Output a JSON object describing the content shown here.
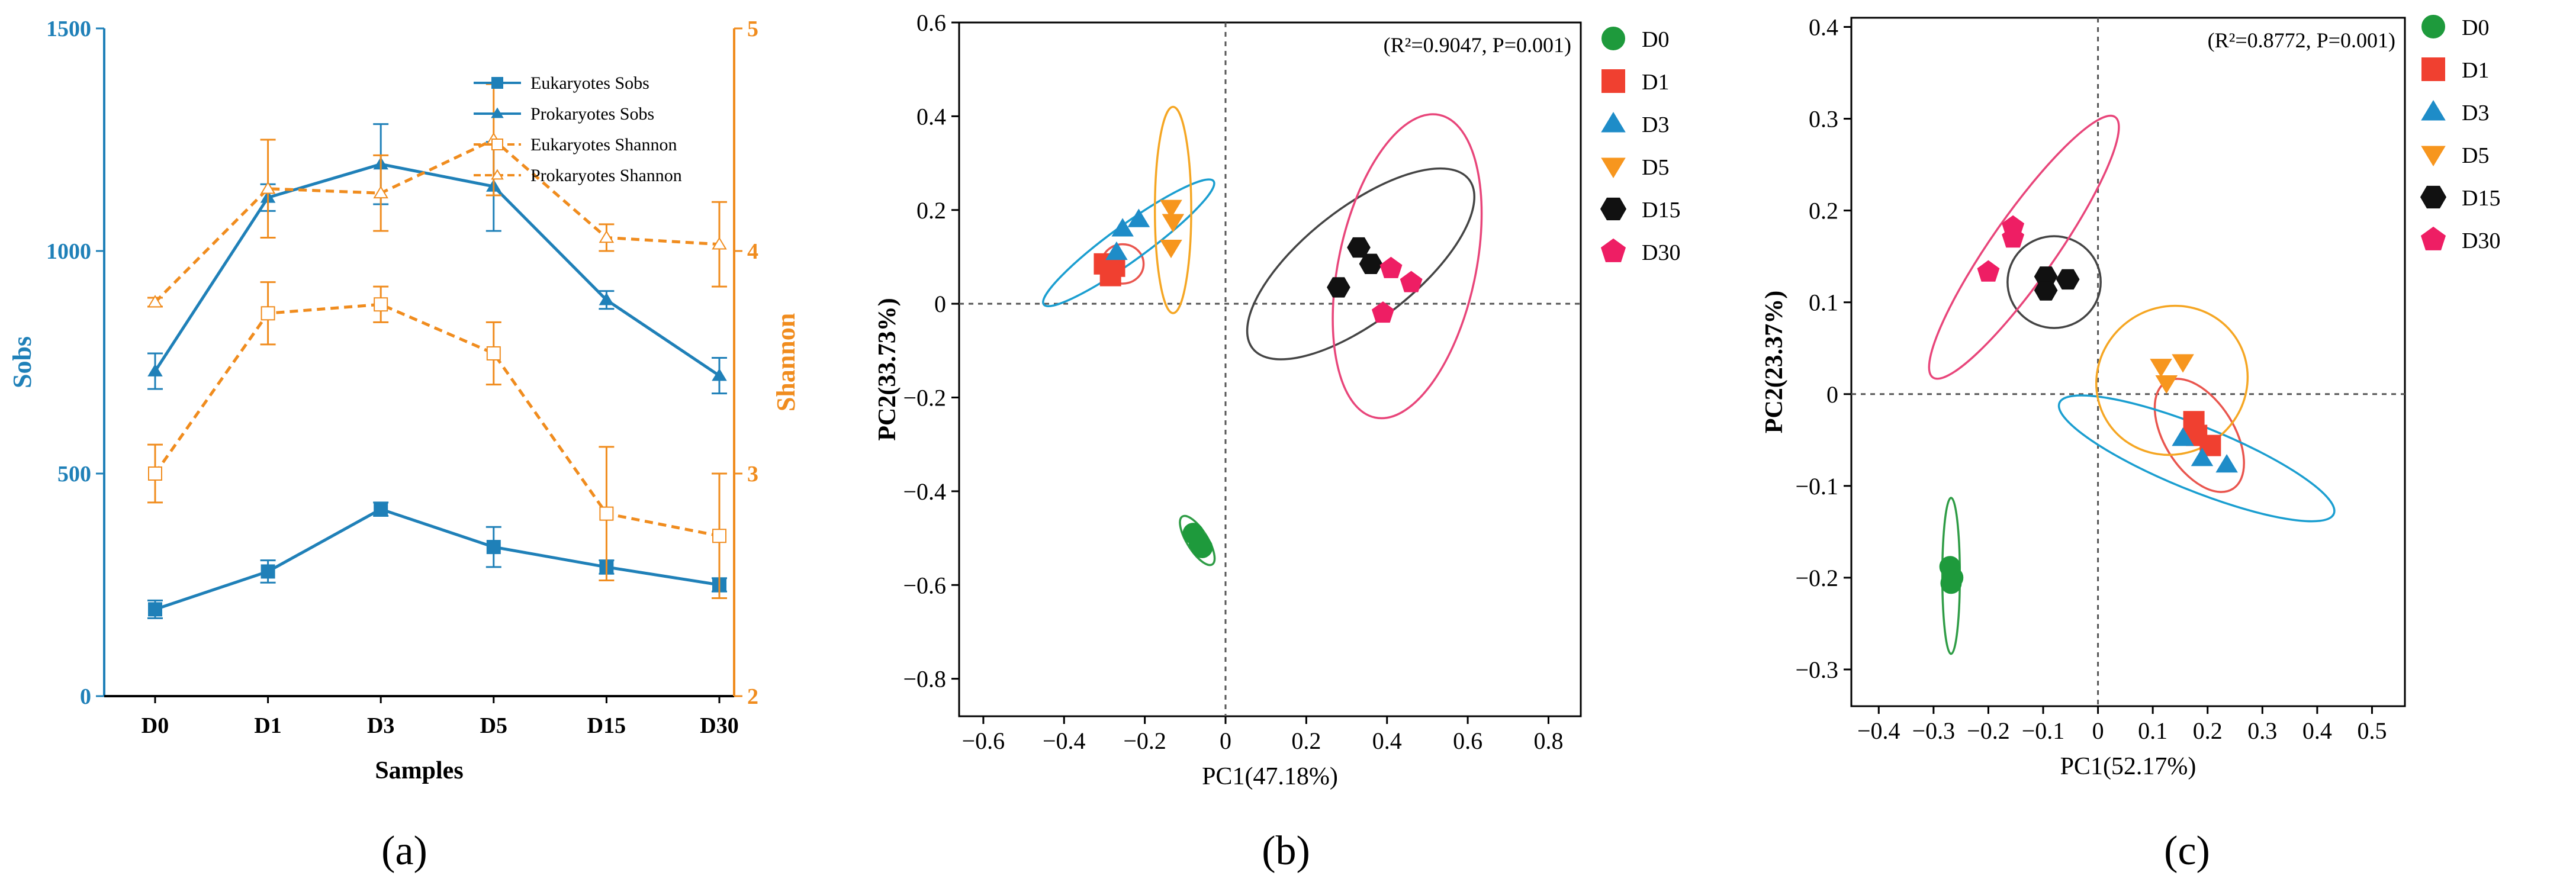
{
  "colors": {
    "blue": "#1f80b8",
    "orange": "#f08c1e",
    "green": "#1e9a3c",
    "red": "#f04030",
    "teal": "#1e8cc8",
    "amber": "#f7961e",
    "black": "#111111",
    "pink": "#ee1e64",
    "ellipse_cyan": "#1a9ed0",
    "ellipse_orange": "#f5a623",
    "ellipse_pink": "#e8457a",
    "ellipse_gray": "#444444",
    "ellipse_green": "#2e9c45",
    "ellipse_red": "#e9554e"
  },
  "labels": {
    "a": "(a)",
    "b": "(b)",
    "c": "(c)"
  },
  "chart_data": [
    {
      "id": "a",
      "type": "line",
      "xlabel": "Samples",
      "ylabel_left": "Sobs",
      "ylabel_right": "Shannon",
      "categories": [
        "D0",
        "D1",
        "D3",
        "D5",
        "D15",
        "D30"
      ],
      "ylim_left": [
        0,
        1500
      ],
      "yticks_left": [
        0,
        500,
        1000,
        1500
      ],
      "ylim_right": [
        2,
        5
      ],
      "yticks_right": [
        2,
        3,
        4,
        5
      ],
      "series": [
        {
          "name": "Eukaryotes Sobs",
          "axis": "left",
          "style": "solid",
          "marker": "square-filled",
          "values": [
            195,
            280,
            420,
            335,
            290,
            250
          ],
          "errors": [
            20,
            25,
            15,
            45,
            15,
            15
          ]
        },
        {
          "name": "Prokaryotes Sobs",
          "axis": "left",
          "style": "solid",
          "marker": "triangle-filled",
          "values": [
            730,
            1120,
            1195,
            1145,
            890,
            720
          ],
          "errors": [
            40,
            30,
            90,
            100,
            20,
            40
          ]
        },
        {
          "name": "Eukaryotes Shannon",
          "axis": "right",
          "style": "dashed",
          "marker": "square-open",
          "values": [
            3.0,
            3.72,
            3.76,
            3.54,
            2.82,
            2.72
          ],
          "errors": [
            0.13,
            0.14,
            0.08,
            0.14,
            0.3,
            0.28
          ]
        },
        {
          "name": "Prokaryotes Shannon",
          "axis": "right",
          "style": "dashed",
          "marker": "triangle-open",
          "values": [
            3.77,
            4.28,
            4.26,
            4.5,
            4.06,
            4.03
          ],
          "errors": [
            0.02,
            0.22,
            0.17,
            0.25,
            0.06,
            0.19
          ]
        }
      ]
    },
    {
      "id": "b",
      "type": "scatter",
      "xlabel": "PC1(47.18%)",
      "ylabel": "PC2(33.73%)",
      "annotation": "(R²=0.9047, P=0.001)",
      "xlim": [
        -0.66,
        0.88
      ],
      "ylim": [
        -0.88,
        0.6
      ],
      "xticks": [
        -0.6,
        -0.4,
        -0.2,
        0,
        0.2,
        0.4,
        0.6,
        0.8
      ],
      "yticks": [
        -0.8,
        -0.6,
        -0.4,
        -0.2,
        0,
        0.2,
        0.4,
        0.6
      ],
      "xtick_labels": [
        "−0.6",
        "−0.4",
        "−0.2",
        "0",
        "0.2",
        "0.4",
        "0.6",
        "0.8"
      ],
      "ytick_labels": [
        "−0.8",
        "−0.6",
        "−0.4",
        "−0.2",
        "0",
        "0.2",
        "0.4",
        "0.6"
      ],
      "series": [
        {
          "name": "D0",
          "marker": "circle",
          "color": "green",
          "points": [
            [
              -0.08,
              -0.49
            ],
            [
              -0.065,
              -0.51
            ],
            [
              -0.058,
              -0.52
            ]
          ]
        },
        {
          "name": "D1",
          "marker": "square",
          "color": "red",
          "points": [
            [
              -0.3,
              0.085
            ],
            [
              -0.285,
              0.06
            ],
            [
              -0.275,
              0.08
            ]
          ]
        },
        {
          "name": "D3",
          "marker": "triangle-up",
          "color": "teal",
          "points": [
            [
              -0.27,
              0.11
            ],
            [
              -0.255,
              0.16
            ],
            [
              -0.215,
              0.18
            ]
          ]
        },
        {
          "name": "D5",
          "marker": "triangle-down",
          "color": "amber",
          "points": [
            [
              -0.135,
              0.205
            ],
            [
              -0.13,
              0.175
            ],
            [
              -0.135,
              0.12
            ]
          ]
        },
        {
          "name": "D15",
          "marker": "hexagon",
          "color": "black",
          "points": [
            [
              0.28,
              0.035
            ],
            [
              0.33,
              0.12
            ],
            [
              0.36,
              0.085
            ]
          ]
        },
        {
          "name": "D30",
          "marker": "pentagon",
          "color": "pink",
          "points": [
            [
              0.39,
              -0.02
            ],
            [
              0.41,
              0.075
            ],
            [
              0.46,
              0.045
            ]
          ]
        }
      ],
      "ellipses": [
        {
          "group": "D0",
          "color": "ellipse_green",
          "cx": -0.07,
          "cy": -0.505,
          "rx": 0.07,
          "ry": 0.022,
          "angle": -58
        },
        {
          "group": "D1",
          "color": "ellipse_red",
          "cx": -0.255,
          "cy": 0.085,
          "rx": 0.052,
          "ry": 0.042,
          "angle": 0
        },
        {
          "group": "D3",
          "color": "ellipse_cyan",
          "cx": -0.24,
          "cy": 0.13,
          "rx": 0.26,
          "ry": 0.038,
          "angle": 36
        },
        {
          "group": "D5",
          "color": "ellipse_orange",
          "cx": -0.13,
          "cy": 0.2,
          "rx": 0.045,
          "ry": 0.22,
          "angle": 0
        },
        {
          "group": "D15",
          "color": "ellipse_gray",
          "cx": 0.335,
          "cy": 0.085,
          "rx": 0.34,
          "ry": 0.12,
          "angle": 38
        },
        {
          "group": "D30",
          "color": "ellipse_pink",
          "cx": 0.45,
          "cy": 0.08,
          "rx": 0.17,
          "ry": 0.33,
          "angle": -12
        }
      ]
    },
    {
      "id": "c",
      "type": "scatter",
      "xlabel": "PC1(52.17%)",
      "ylabel": "PC2(23.37%)",
      "annotation": "(R²=0.8772, P=0.001)",
      "xlim": [
        -0.45,
        0.56
      ],
      "ylim": [
        -0.34,
        0.41
      ],
      "xticks": [
        -0.4,
        -0.3,
        -0.2,
        -0.1,
        0,
        0.1,
        0.2,
        0.3,
        0.4,
        0.5
      ],
      "yticks": [
        -0.3,
        -0.2,
        -0.1,
        0,
        0.1,
        0.2,
        0.3,
        0.4
      ],
      "xtick_labels": [
        "−0.4",
        "−0.3",
        "−0.2",
        "−0.1",
        "0",
        "0.1",
        "0.2",
        "0.3",
        "0.4",
        "0.5"
      ],
      "ytick_labels": [
        "−0.3",
        "−0.2",
        "−0.1",
        "0",
        "0.1",
        "0.2",
        "0.3",
        "0.4"
      ],
      "series": [
        {
          "name": "D0",
          "marker": "circle",
          "color": "green",
          "points": [
            [
              -0.27,
              -0.188
            ],
            [
              -0.265,
              -0.2
            ],
            [
              -0.268,
              -0.206
            ]
          ]
        },
        {
          "name": "D1",
          "marker": "square",
          "color": "red",
          "points": [
            [
              0.175,
              -0.03
            ],
            [
              0.18,
              -0.045
            ],
            [
              0.205,
              -0.056
            ]
          ]
        },
        {
          "name": "D3",
          "marker": "triangle-up",
          "color": "teal",
          "points": [
            [
              0.155,
              -0.048
            ],
            [
              0.19,
              -0.07
            ],
            [
              0.235,
              -0.077
            ]
          ]
        },
        {
          "name": "D5",
          "marker": "triangle-down",
          "color": "amber",
          "points": [
            [
              0.115,
              0.03
            ],
            [
              0.125,
              0.012
            ],
            [
              0.155,
              0.035
            ]
          ]
        },
        {
          "name": "D15",
          "marker": "hexagon",
          "color": "black",
          "points": [
            [
              -0.095,
              0.128
            ],
            [
              -0.095,
              0.113
            ],
            [
              -0.055,
              0.125
            ]
          ]
        },
        {
          "name": "D30",
          "marker": "pentagon",
          "color": "pink",
          "points": [
            [
              -0.2,
              0.133
            ],
            [
              -0.155,
              0.17
            ],
            [
              -0.155,
              0.182
            ]
          ]
        }
      ],
      "ellipses": [
        {
          "group": "D0",
          "color": "ellipse_green",
          "cx": -0.268,
          "cy": -0.198,
          "rx": 0.016,
          "ry": 0.085,
          "angle": 0
        },
        {
          "group": "D1",
          "color": "ellipse_red",
          "cx": 0.185,
          "cy": -0.045,
          "rx": 0.115,
          "ry": 0.038,
          "angle": -58
        },
        {
          "group": "D3",
          "color": "ellipse_cyan",
          "cx": 0.18,
          "cy": -0.07,
          "rx": 0.27,
          "ry": 0.035,
          "angle": -22
        },
        {
          "group": "D5",
          "color": "ellipse_orange",
          "cx": 0.135,
          "cy": 0.015,
          "rx": 0.14,
          "ry": 0.08,
          "angle": 35
        },
        {
          "group": "D15",
          "color": "ellipse_gray",
          "cx": -0.08,
          "cy": 0.122,
          "rx": 0.085,
          "ry": 0.05,
          "angle": 0
        },
        {
          "group": "D30",
          "color": "ellipse_pink",
          "cx": -0.135,
          "cy": 0.16,
          "rx": 0.29,
          "ry": 0.035,
          "angle": 55
        }
      ]
    }
  ]
}
